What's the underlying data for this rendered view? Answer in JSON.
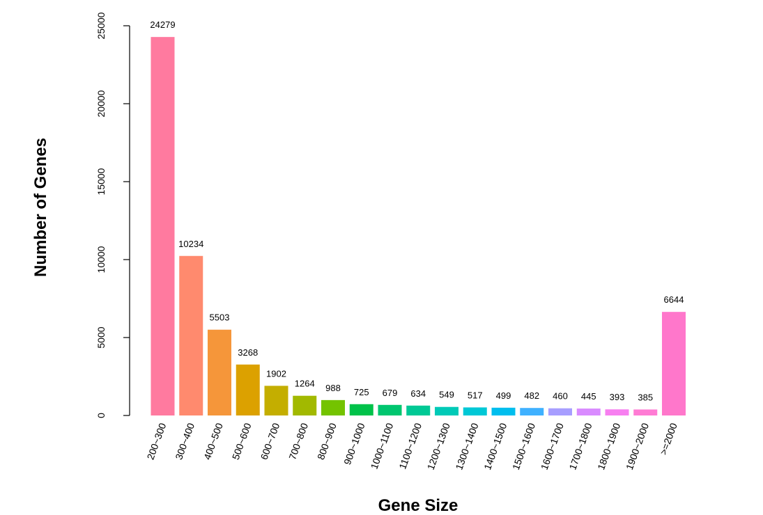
{
  "chart_data": {
    "type": "bar",
    "title": "",
    "xlabel": "Gene Size",
    "ylabel": "Number of Genes",
    "ylim": [
      0,
      25000
    ],
    "yticks": [
      "0",
      "5000",
      "10000",
      "15000",
      "20000",
      "25000"
    ],
    "grid": false,
    "categories": [
      "200~300",
      "300~400",
      "400~500",
      "500~600",
      "600~700",
      "700~800",
      "800~900",
      "900~1000",
      "1000~1100",
      "1100~1200",
      "1200~1300",
      "1300~1400",
      "1400~1500",
      "1500~1600",
      "1600~1700",
      "1700~1800",
      "1800~1900",
      "1900~2000",
      ">=2000"
    ],
    "values": [
      24279,
      10234,
      5503,
      3268,
      1902,
      1264,
      988,
      725,
      679,
      634,
      549,
      517,
      499,
      482,
      460,
      445,
      393,
      385,
      6644
    ],
    "value_labels": [
      "24279",
      "10234",
      "5503",
      "3268",
      "1902",
      "1264",
      "988",
      "725",
      "679",
      "634",
      "549",
      "517",
      "499",
      "482",
      "460",
      "445",
      "393",
      "385",
      "6644"
    ],
    "colors": [
      "#FF7A9F",
      "#FF8A6E",
      "#F5963A",
      "#DCA100",
      "#C4AE00",
      "#A2B900",
      "#74C300",
      "#00C24A",
      "#00C66F",
      "#00C995",
      "#00CAB7",
      "#00C8D6",
      "#00BEEE",
      "#3FB1FF",
      "#A79EFF",
      "#D98BFF",
      "#F77FF0",
      "#FF7BD4",
      "#FF77CB"
    ]
  }
}
